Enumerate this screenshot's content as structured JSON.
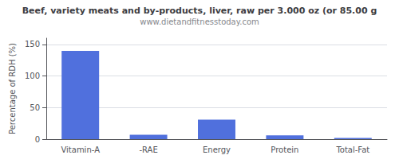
{
  "chart_data": {
    "type": "bar",
    "title": "Beef, variety meats and by-products, liver, raw per 3.000 oz (or 85.00 g",
    "subtitle": "www.dietandfitnesstoday.com",
    "categories": [
      "Vitamin-A",
      "-RAE",
      "Energy",
      "Protein",
      "Total-Fat"
    ],
    "values": [
      140,
      7,
      31,
      6,
      2
    ],
    "ylabel": "Percentage of RDH (%)",
    "ylim": [
      0,
      160
    ],
    "yticks": [
      0,
      50,
      100,
      150
    ],
    "grid": true
  }
}
